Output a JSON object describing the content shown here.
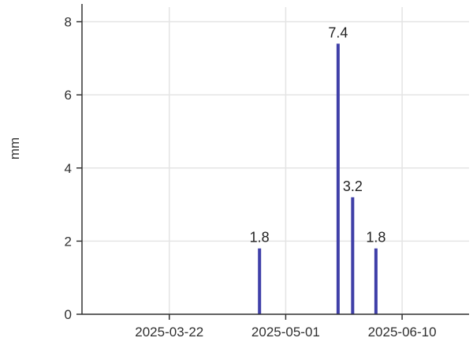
{
  "chart_data": {
    "type": "bar",
    "title": "",
    "xlabel": "",
    "ylabel": "mm",
    "x_type": "date",
    "xlim": [
      "2025-02-20",
      "2025-07-03"
    ],
    "ylim": [
      0,
      8.4
    ],
    "x_ticks": [
      "2025-03-22",
      "2025-05-01",
      "2025-06-10"
    ],
    "y_ticks": [
      0,
      2,
      4,
      6,
      8
    ],
    "grid": true,
    "legend": "none",
    "bar_color": "#3f3fa8",
    "points": [
      {
        "x": "2025-04-22",
        "y": 1.8,
        "label": "1.8"
      },
      {
        "x": "2025-05-19",
        "y": 7.4,
        "label": "7.4"
      },
      {
        "x": "2025-05-24",
        "y": 3.2,
        "label": "3.2"
      },
      {
        "x": "2025-06-01",
        "y": 1.8,
        "label": "1.8"
      }
    ]
  }
}
